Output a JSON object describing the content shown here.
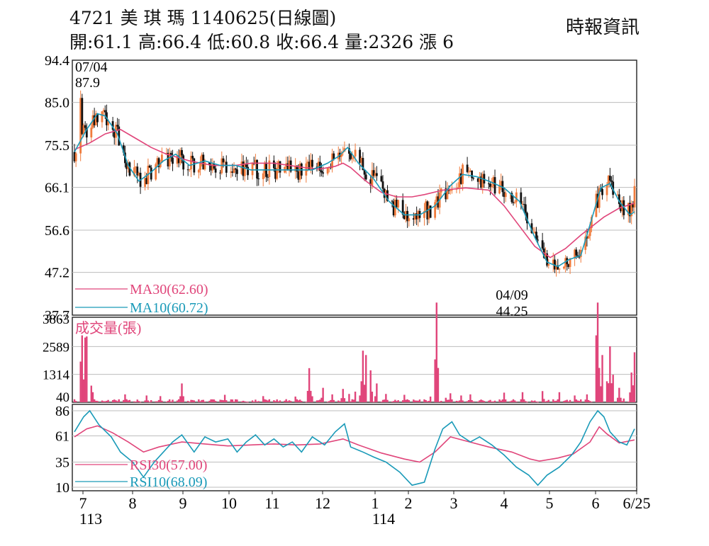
{
  "header": {
    "title": "4721  美 琪 瑪 1140625(日線圖)",
    "ohlc": "開:61.1 高:66.4 低:60.8 收:66.4 量:2326 漲 6",
    "source": "時報資訊"
  },
  "chart_data": {
    "type": "candlestick",
    "price_axis": {
      "ticks": [
        "94.4",
        "85.0",
        "75.5",
        "66.1",
        "56.6",
        "47.2",
        "37.7"
      ],
      "range": [
        37.7,
        94.4
      ]
    },
    "x_axis": {
      "months": [
        "7",
        "8",
        "9",
        "10",
        "11",
        "12",
        "1",
        "2",
        "3",
        "4",
        "5",
        "6",
        "6/25"
      ],
      "years": [
        "113",
        "114"
      ]
    },
    "annotations": {
      "high": {
        "date": "07/04",
        "value": "87.9"
      },
      "low": {
        "date": "04/09",
        "value": "44.25"
      }
    },
    "ma_legend": [
      {
        "label": "MA30(62.60)",
        "color": "#e0457a"
      },
      {
        "label": "MA10(60.72)",
        "color": "#1a9ab8"
      }
    ],
    "ma30": [
      [
        0,
        74.5
      ],
      [
        10,
        76
      ],
      [
        20,
        78
      ],
      [
        30,
        79
      ],
      [
        40,
        77
      ],
      [
        50,
        75
      ],
      [
        60,
        73.5
      ],
      [
        75,
        72
      ],
      [
        90,
        71
      ],
      [
        105,
        71
      ],
      [
        115,
        71.5
      ],
      [
        130,
        71.5
      ],
      [
        140,
        71
      ],
      [
        150,
        70.5
      ],
      [
        160,
        70.2
      ],
      [
        170,
        70.8
      ],
      [
        175,
        71.5
      ],
      [
        180,
        70.5
      ],
      [
        190,
        67.5
      ],
      [
        200,
        65
      ],
      [
        210,
        64
      ],
      [
        220,
        64
      ],
      [
        228,
        64.5
      ],
      [
        240,
        65.5
      ],
      [
        255,
        66
      ],
      [
        270,
        65.5
      ],
      [
        280,
        62
      ],
      [
        290,
        57.5
      ],
      [
        300,
        53
      ],
      [
        310,
        50.5
      ],
      [
        320,
        52.5
      ],
      [
        330,
        55.5
      ],
      [
        345,
        59.5
      ],
      [
        355,
        61.5
      ],
      [
        365,
        62.6
      ]
    ],
    "ma10": [
      [
        0,
        74
      ],
      [
        8,
        79
      ],
      [
        15,
        82.5
      ],
      [
        20,
        82
      ],
      [
        28,
        78
      ],
      [
        35,
        71
      ],
      [
        42,
        67.5
      ],
      [
        50,
        69.5
      ],
      [
        58,
        72
      ],
      [
        66,
        73.5
      ],
      [
        75,
        71
      ],
      [
        85,
        72
      ],
      [
        95,
        71
      ],
      [
        105,
        71
      ],
      [
        115,
        70
      ],
      [
        125,
        70
      ],
      [
        135,
        70
      ],
      [
        145,
        70
      ],
      [
        155,
        70
      ],
      [
        165,
        71.5
      ],
      [
        172,
        73
      ],
      [
        178,
        75
      ],
      [
        185,
        71.5
      ],
      [
        195,
        68
      ],
      [
        205,
        63
      ],
      [
        215,
        60
      ],
      [
        225,
        60
      ],
      [
        235,
        62
      ],
      [
        245,
        66.5
      ],
      [
        253,
        69
      ],
      [
        262,
        68.5
      ],
      [
        270,
        67.5
      ],
      [
        280,
        66
      ],
      [
        290,
        63
      ],
      [
        300,
        55
      ],
      [
        308,
        49.5
      ],
      [
        315,
        48.5
      ],
      [
        322,
        50
      ],
      [
        330,
        51
      ],
      [
        337,
        59
      ],
      [
        343,
        66
      ],
      [
        349,
        67
      ],
      [
        355,
        63
      ],
      [
        362,
        60
      ],
      [
        365,
        60.7
      ]
    ],
    "volume_axis": {
      "ticks": [
        "3863",
        "2589",
        "1314",
        "40"
      ],
      "range": [
        40,
        3863
      ]
    },
    "volume_label": "成交量(張)",
    "volume_peaks": [
      [
        4,
        1900
      ],
      [
        5,
        3100
      ],
      [
        7,
        3000
      ],
      [
        8,
        3050
      ],
      [
        9,
        2900
      ],
      [
        10,
        1200
      ],
      [
        11,
        800
      ],
      [
        12,
        500
      ],
      [
        30,
        450
      ],
      [
        33,
        400
      ],
      [
        47,
        350
      ],
      [
        56,
        320
      ],
      [
        70,
        900
      ],
      [
        98,
        380
      ],
      [
        123,
        320
      ],
      [
        144,
        300
      ],
      [
        153,
        1600
      ],
      [
        156,
        900
      ],
      [
        162,
        700
      ],
      [
        168,
        400
      ],
      [
        175,
        650
      ],
      [
        178,
        1200
      ],
      [
        184,
        1500
      ],
      [
        187,
        1000
      ],
      [
        188,
        2400
      ],
      [
        190,
        2200
      ],
      [
        193,
        1500
      ],
      [
        197,
        900
      ],
      [
        203,
        420
      ],
      [
        215,
        380
      ],
      [
        232,
        300
      ],
      [
        235,
        2000
      ],
      [
        236,
        4600
      ],
      [
        241,
        700
      ],
      [
        245,
        450
      ],
      [
        252,
        350
      ],
      [
        258,
        400
      ],
      [
        280,
        480
      ],
      [
        292,
        500
      ],
      [
        305,
        550
      ],
      [
        316,
        500
      ],
      [
        326,
        350
      ],
      [
        334,
        400
      ],
      [
        340,
        3100
      ],
      [
        341,
        4600
      ],
      [
        344,
        2200
      ],
      [
        347,
        1000
      ],
      [
        349,
        2600
      ],
      [
        351,
        1300
      ],
      [
        355,
        700
      ],
      [
        359,
        600
      ],
      [
        363,
        1400
      ],
      [
        365,
        2326
      ]
    ],
    "rsi_axis": {
      "ticks": [
        "86",
        "61",
        "35",
        "10"
      ],
      "range": [
        10,
        86
      ]
    },
    "rsi_legend": [
      {
        "label": "RSI30(57.00)",
        "color": "#e0457a"
      },
      {
        "label": "RSI10(68.09)",
        "color": "#1a9ab8"
      }
    ],
    "rsi30": [
      [
        0,
        60
      ],
      [
        8,
        68
      ],
      [
        15,
        71
      ],
      [
        25,
        64
      ],
      [
        35,
        55
      ],
      [
        45,
        45
      ],
      [
        55,
        50
      ],
      [
        70,
        55
      ],
      [
        85,
        53
      ],
      [
        100,
        51
      ],
      [
        115,
        52
      ],
      [
        130,
        53
      ],
      [
        145,
        52
      ],
      [
        160,
        53
      ],
      [
        175,
        58
      ],
      [
        185,
        52
      ],
      [
        200,
        44
      ],
      [
        215,
        38
      ],
      [
        225,
        35
      ],
      [
        235,
        45
      ],
      [
        245,
        60
      ],
      [
        255,
        56
      ],
      [
        270,
        50
      ],
      [
        285,
        45
      ],
      [
        297,
        38
      ],
      [
        303,
        36
      ],
      [
        315,
        39
      ],
      [
        325,
        43
      ],
      [
        336,
        55
      ],
      [
        342,
        70
      ],
      [
        347,
        63
      ],
      [
        355,
        54
      ],
      [
        365,
        57
      ]
    ],
    "rsi10": [
      [
        0,
        65
      ],
      [
        6,
        80
      ],
      [
        10,
        86
      ],
      [
        16,
        72
      ],
      [
        24,
        60
      ],
      [
        30,
        45
      ],
      [
        38,
        35
      ],
      [
        45,
        20
      ],
      [
        52,
        35
      ],
      [
        58,
        45
      ],
      [
        64,
        55
      ],
      [
        70,
        62
      ],
      [
        78,
        45
      ],
      [
        85,
        60
      ],
      [
        92,
        55
      ],
      [
        100,
        58
      ],
      [
        106,
        45
      ],
      [
        112,
        55
      ],
      [
        118,
        62
      ],
      [
        124,
        52
      ],
      [
        130,
        58
      ],
      [
        136,
        50
      ],
      [
        142,
        55
      ],
      [
        148,
        45
      ],
      [
        155,
        60
      ],
      [
        163,
        52
      ],
      [
        170,
        65
      ],
      [
        176,
        73
      ],
      [
        180,
        50
      ],
      [
        188,
        45
      ],
      [
        195,
        40
      ],
      [
        203,
        35
      ],
      [
        212,
        25
      ],
      [
        220,
        12
      ],
      [
        228,
        15
      ],
      [
        235,
        48
      ],
      [
        240,
        68
      ],
      [
        246,
        75
      ],
      [
        251,
        62
      ],
      [
        258,
        55
      ],
      [
        264,
        60
      ],
      [
        272,
        52
      ],
      [
        280,
        42
      ],
      [
        288,
        30
      ],
      [
        296,
        22
      ],
      [
        302,
        12
      ],
      [
        308,
        22
      ],
      [
        316,
        30
      ],
      [
        324,
        42
      ],
      [
        330,
        55
      ],
      [
        336,
        75
      ],
      [
        341,
        86
      ],
      [
        345,
        80
      ],
      [
        349,
        65
      ],
      [
        355,
        55
      ],
      [
        360,
        52
      ],
      [
        365,
        68
      ]
    ],
    "candle_seed": 4721,
    "bull_color": "#f07b3c",
    "bear_color": "#111111",
    "volume_color": "#e0457a",
    "grid": true
  }
}
